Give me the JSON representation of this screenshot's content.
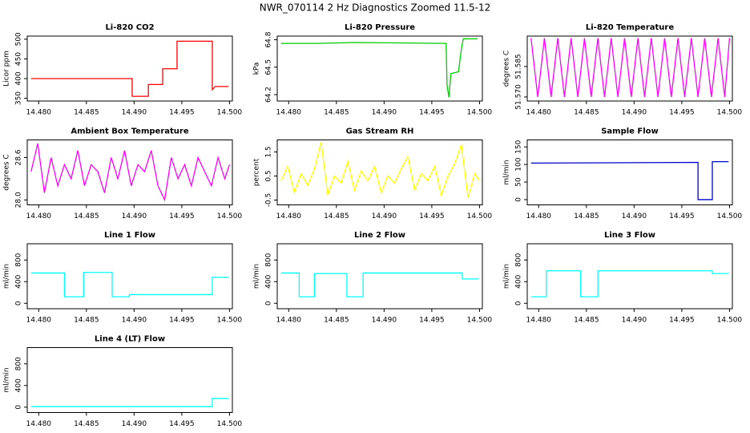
{
  "title": "NWR_070114  2 Hz Diagnostics Zoomed 11.5-12",
  "chart_data": [
    {
      "type": "line",
      "title": "Li-820 CO2",
      "y_label": "Licor ppm",
      "color": "#ff0000",
      "x": [
        14.4792,
        14.4898,
        14.4898,
        14.4915,
        14.4915,
        14.493,
        14.493,
        14.4945,
        14.4945,
        14.4982,
        14.4982,
        14.4985,
        14.4999
      ],
      "values": [
        400,
        400,
        355,
        355,
        385,
        385,
        425,
        425,
        495,
        495,
        372,
        380,
        380
      ],
      "xlim": [
        14.4788,
        14.5003
      ],
      "xticks": [
        {
          "value": 14.48,
          "label": "14.480"
        },
        14.485,
        {
          "value": 14.49,
          "label": "14.490"
        },
        14.495,
        {
          "value": 14.5,
          "label": "14.500"
        }
      ],
      "ylim": [
        343,
        508
      ],
      "yticks": [
        350,
        400,
        450,
        500
      ]
    },
    {
      "type": "line",
      "title": "Li-820 Pressure",
      "y_label": "kPa",
      "color": "#00cc00",
      "x": [
        14.4792,
        14.483,
        14.487,
        14.4965,
        14.4966,
        14.4968,
        14.497,
        14.4978,
        14.4981,
        14.4983,
        14.4998
      ],
      "values": [
        64.76,
        64.76,
        64.77,
        64.76,
        64.3,
        64.17,
        64.43,
        64.45,
        64.7,
        64.81,
        64.81
      ],
      "xlim": [
        14.4788,
        14.5003
      ],
      "xticks": [
        {
          "value": 14.48,
          "label": "14.480"
        },
        14.485,
        {
          "value": 14.49,
          "label": "14.490"
        },
        14.495,
        {
          "value": 14.5,
          "label": "14.500"
        }
      ],
      "ylim": [
        64.13,
        64.84
      ],
      "yticks": [
        64.2,
        64.5,
        64.8
      ]
    },
    {
      "type": "line",
      "title": "Li-820 Temperature",
      "y_label": "degrees C",
      "color": "#ff00ff",
      "x": [
        14.4792,
        14.4799,
        14.4806,
        14.4813,
        14.482,
        14.4827,
        14.4834,
        14.4841,
        14.4848,
        14.4855,
        14.4862,
        14.4869,
        14.4876,
        14.4883,
        14.489,
        14.4897,
        14.4904,
        14.4911,
        14.4918,
        14.4925,
        14.4932,
        14.4939,
        14.4946,
        14.4953,
        14.496,
        14.4967,
        14.4974,
        14.4981,
        14.4988,
        14.4995,
        14.5
      ],
      "values": [
        51.599,
        51.57,
        51.599,
        51.57,
        51.599,
        51.57,
        51.599,
        51.57,
        51.599,
        51.57,
        51.599,
        51.57,
        51.599,
        51.57,
        51.599,
        51.57,
        51.599,
        51.57,
        51.599,
        51.57,
        51.599,
        51.57,
        51.599,
        51.57,
        51.599,
        51.57,
        51.599,
        51.57,
        51.599,
        51.57,
        51.599
      ],
      "xlim": [
        14.4788,
        14.5003
      ],
      "xticks": [
        {
          "value": 14.48,
          "label": "14.480"
        },
        14.485,
        {
          "value": 14.49,
          "label": "14.490"
        },
        14.495,
        {
          "value": 14.5,
          "label": "14.500"
        }
      ],
      "ylim": [
        51.568,
        51.6
      ],
      "yticks": [
        {
          "value": 51.57,
          "label": "51.570"
        },
        51.585
      ]
    },
    {
      "type": "line",
      "title": "Ambient Box Temperature",
      "y_label": "degrees C",
      "color": "#ff00ff",
      "x": [
        14.4792,
        14.4799,
        14.4806,
        14.4813,
        14.482,
        14.4827,
        14.4834,
        14.4841,
        14.4848,
        14.4855,
        14.4862,
        14.4869,
        14.4876,
        14.4883,
        14.489,
        14.4897,
        14.4904,
        14.4911,
        14.4918,
        14.4925,
        14.4932,
        14.4939,
        14.4946,
        14.4953,
        14.496,
        14.4967,
        14.4974,
        14.4981,
        14.4988,
        14.4995,
        14.5
      ],
      "values": [
        28.4,
        28.8,
        28.1,
        28.6,
        28.2,
        28.5,
        28.3,
        28.7,
        28.2,
        28.5,
        28.4,
        28.1,
        28.6,
        28.3,
        28.7,
        28.2,
        28.5,
        28.4,
        28.7,
        28.2,
        28.0,
        28.6,
        28.3,
        28.5,
        28.2,
        28.6,
        28.4,
        28.2,
        28.6,
        28.3,
        28.5
      ],
      "xlim": [
        14.4788,
        14.5003
      ],
      "xticks": [
        {
          "value": 14.48,
          "label": "14.480"
        },
        14.485,
        {
          "value": 14.49,
          "label": "14.490"
        },
        14.495,
        {
          "value": 14.5,
          "label": "14.500"
        }
      ],
      "ylim": [
        27.93,
        28.85
      ],
      "yticks": [
        {
          "value": 28.0,
          "label": "28.0"
        },
        28.6
      ]
    },
    {
      "type": "line",
      "title": "Gas Stream RH",
      "y_label": "percent",
      "color": "#ffff00",
      "x": [
        14.4792,
        14.4799,
        14.4806,
        14.4813,
        14.482,
        14.4827,
        14.4834,
        14.4841,
        14.4848,
        14.4855,
        14.4862,
        14.4869,
        14.4876,
        14.4883,
        14.489,
        14.4897,
        14.4904,
        14.4911,
        14.4918,
        14.4925,
        14.4932,
        14.4939,
        14.4946,
        14.4953,
        14.496,
        14.4967,
        14.4974,
        14.4981,
        14.4988,
        14.4995,
        14.5
      ],
      "values": [
        0.3,
        0.9,
        -0.2,
        0.6,
        0.1,
        0.8,
        1.9,
        -0.3,
        0.5,
        0.2,
        1.1,
        -0.1,
        0.7,
        0.3,
        0.9,
        -0.2,
        0.5,
        0.2,
        0.8,
        1.3,
        -0.1,
        0.6,
        0.3,
        0.9,
        -0.3,
        0.5,
        1.0,
        1.8,
        -0.4,
        0.6,
        0.3
      ],
      "xlim": [
        14.4788,
        14.5003
      ],
      "xticks": [
        {
          "value": 14.48,
          "label": "14.480"
        },
        14.485,
        {
          "value": 14.49,
          "label": "14.490"
        },
        14.495,
        {
          "value": 14.5,
          "label": "14.500"
        }
      ],
      "ylim": [
        -0.7,
        2.0
      ],
      "yticks": [
        -0.5,
        0.5,
        1.5
      ]
    },
    {
      "type": "line",
      "title": "Sample Flow",
      "y_label": "ml/min",
      "color": "#0000cc",
      "x": [
        14.4792,
        14.4967,
        14.4967,
        14.4982,
        14.4982,
        14.4999
      ],
      "values": [
        104,
        106,
        0,
        0,
        108,
        108
      ],
      "xlim": [
        14.4788,
        14.5003
      ],
      "xticks": [
        {
          "value": 14.48,
          "label": "14.480"
        },
        14.485,
        {
          "value": 14.49,
          "label": "14.490"
        },
        14.495,
        {
          "value": 14.5,
          "label": "14.500"
        }
      ],
      "ylim": [
        -15,
        170
      ],
      "yticks": [
        0,
        50,
        100,
        150
      ]
    },
    {
      "type": "line",
      "title": "Line 1 Flow",
      "y_label": "ml/min",
      "color": "#00ffff",
      "x": [
        14.4792,
        14.4827,
        14.4827,
        14.4847,
        14.4847,
        14.4877,
        14.4877,
        14.4895,
        14.4895,
        14.4982,
        14.4982,
        14.4999
      ],
      "values": [
        560,
        560,
        120,
        120,
        570,
        570,
        120,
        120,
        160,
        160,
        480,
        480
      ],
      "xlim": [
        14.4788,
        14.5003
      ],
      "xticks": [
        {
          "value": 14.48,
          "label": "14.480"
        },
        14.485,
        {
          "value": 14.49,
          "label": "14.490"
        },
        14.495,
        {
          "value": 14.5,
          "label": "14.500"
        }
      ],
      "ylim": [
        -100,
        1100
      ],
      "yticks": [
        0,
        400,
        800
      ]
    },
    {
      "type": "line",
      "title": "Line 2 Flow",
      "y_label": "ml/min",
      "color": "#00ffff",
      "x": [
        14.4792,
        14.4811,
        14.4811,
        14.4827,
        14.4827,
        14.4861,
        14.4861,
        14.4878,
        14.4878,
        14.4982,
        14.4982,
        14.4999
      ],
      "values": [
        560,
        560,
        120,
        120,
        550,
        550,
        120,
        120,
        560,
        560,
        450,
        450
      ],
      "xlim": [
        14.4788,
        14.5003
      ],
      "xticks": [
        {
          "value": 14.48,
          "label": "14.480"
        },
        14.485,
        {
          "value": 14.49,
          "label": "14.490"
        },
        14.495,
        {
          "value": 14.5,
          "label": "14.500"
        }
      ],
      "ylim": [
        -100,
        1100
      ],
      "yticks": [
        0,
        400,
        800
      ]
    },
    {
      "type": "line",
      "title": "Line 3 Flow",
      "y_label": "ml/min",
      "color": "#00ffff",
      "x": [
        14.4792,
        14.4808,
        14.4808,
        14.4844,
        14.4844,
        14.4862,
        14.4862,
        14.4982,
        14.4982,
        14.4999
      ],
      "values": [
        120,
        120,
        600,
        600,
        120,
        120,
        600,
        600,
        550,
        550
      ],
      "xlim": [
        14.4788,
        14.5003
      ],
      "xticks": [
        {
          "value": 14.48,
          "label": "14.480"
        },
        14.485,
        {
          "value": 14.49,
          "label": "14.490"
        },
        14.495,
        {
          "value": 14.5,
          "label": "14.500"
        }
      ],
      "ylim": [
        -100,
        1100
      ],
      "yticks": [
        0,
        400,
        800
      ]
    },
    {
      "type": "line",
      "title": "Line 4 (LT) Flow",
      "y_label": "ml/min",
      "color": "#00ffff",
      "x": [
        14.4792,
        14.4982,
        14.4982,
        14.4999
      ],
      "values": [
        10,
        10,
        160,
        160
      ],
      "xlim": [
        14.4788,
        14.5003
      ],
      "xticks": [
        {
          "value": 14.48,
          "label": "14.480"
        },
        14.485,
        {
          "value": 14.49,
          "label": "14.490"
        },
        14.495,
        {
          "value": 14.5,
          "label": "14.500"
        }
      ],
      "ylim": [
        -100,
        1100
      ],
      "yticks": [
        0,
        400,
        800
      ]
    }
  ]
}
